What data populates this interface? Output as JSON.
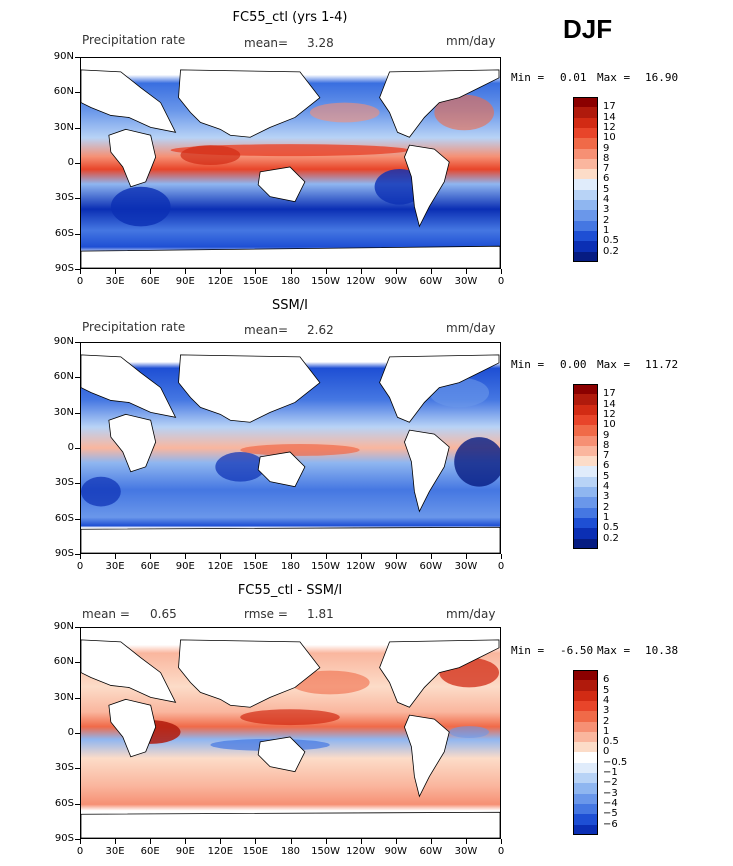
{
  "season": "DJF",
  "lat_labels": [
    "90N",
    "60N",
    "30N",
    "0",
    "30S",
    "60S",
    "90S"
  ],
  "lon_labels": [
    "0",
    "30E",
    "60E",
    "90E",
    "120E",
    "150E",
    "180",
    "150W",
    "120W",
    "90W",
    "60W",
    "30W",
    "0"
  ],
  "panels": [
    {
      "title": "FC55_ctl (yrs 1-4)",
      "left_label": "Precipitation rate",
      "mean_label": "mean=",
      "mean_value": "3.28",
      "units": "mm/day",
      "min_label": "Min =",
      "min_value": "0.01",
      "max_label": "Max =",
      "max_value": "16.90",
      "colorbar": {
        "labels": [
          "17",
          "14",
          "12",
          "10",
          "9",
          "8",
          "7",
          "6",
          "5",
          "4",
          "3",
          "2",
          "1",
          "0.5",
          "0.2"
        ],
        "colors": [
          "#8b0000",
          "#b01a0c",
          "#d22b14",
          "#e8452a",
          "#f06a48",
          "#f69074",
          "#fab69e",
          "#fcdcc8",
          "#e0ecfb",
          "#b8d3f6",
          "#8fb6f0",
          "#6a97ea",
          "#4577e2",
          "#1e4fd4",
          "#0b2fb4",
          "#061c82"
        ]
      }
    },
    {
      "title": "SSM/I",
      "left_label": "Precipitation rate",
      "mean_label": "mean=",
      "mean_value": "2.62",
      "units": "mm/day",
      "min_label": "Min =",
      "min_value": "0.00",
      "max_label": "Max =",
      "max_value": "11.72",
      "colorbar": {
        "labels": [
          "17",
          "14",
          "12",
          "10",
          "9",
          "8",
          "7",
          "6",
          "5",
          "4",
          "3",
          "2",
          "1",
          "0.5",
          "0.2"
        ],
        "colors": [
          "#8b0000",
          "#b01a0c",
          "#d22b14",
          "#e8452a",
          "#f06a48",
          "#f69074",
          "#fab69e",
          "#fcdcc8",
          "#e0ecfb",
          "#b8d3f6",
          "#8fb6f0",
          "#6a97ea",
          "#4577e2",
          "#1e4fd4",
          "#0b2fb4",
          "#061c82"
        ]
      }
    },
    {
      "title": "FC55_ctl - SSM/I",
      "left_label": "mean =",
      "mean_label": "",
      "mean_value": "0.65",
      "rmse_label": "rmse =",
      "rmse_value": "1.81",
      "units": "mm/day",
      "min_label": "Min =",
      "min_value": "-6.50",
      "max_label": "Max =",
      "max_value": "10.38",
      "colorbar": {
        "labels": [
          "6",
          "5",
          "4",
          "3",
          "2",
          "1",
          "0.5",
          "0",
          "−0.5",
          "−1",
          "−2",
          "−3",
          "−4",
          "−5",
          "−6"
        ],
        "colors": [
          "#8b0000",
          "#b01a0c",
          "#d22b14",
          "#e8452a",
          "#f06a48",
          "#f69074",
          "#fab69e",
          "#fcdcc8",
          "#ffffff",
          "#e0ecfb",
          "#b8d3f6",
          "#8fb6f0",
          "#6a97ea",
          "#4577e2",
          "#1e4fd4",
          "#0b2fb4"
        ]
      }
    }
  ]
}
